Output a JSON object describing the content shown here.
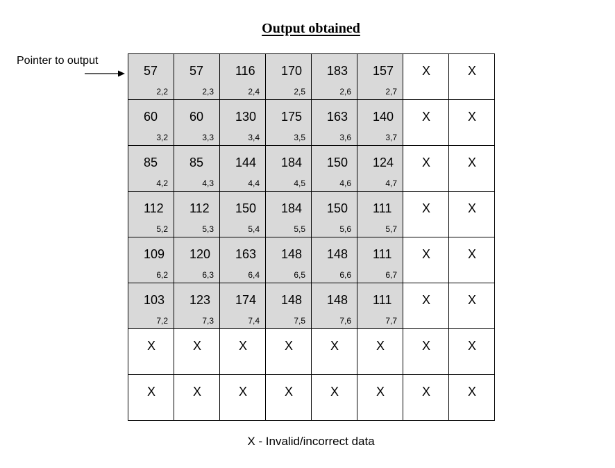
{
  "title": "Output obtained",
  "pointer_label": "Pointer to output",
  "legend": "X - Invalid/incorrect data",
  "invalid_symbol": "X",
  "colors": {
    "valid_cell": "#d9d9d9",
    "invalid_cell": "#ffffff",
    "border": "#000000"
  },
  "grid": {
    "rows": 8,
    "cols": 8,
    "cells": [
      [
        {
          "v": "57",
          "i": "2,2"
        },
        {
          "v": "57",
          "i": "2,3"
        },
        {
          "v": "116",
          "i": "2,4"
        },
        {
          "v": "170",
          "i": "2,5"
        },
        {
          "v": "183",
          "i": "2,6"
        },
        {
          "v": "157",
          "i": "2,7"
        },
        {
          "v": "X"
        },
        {
          "v": "X"
        }
      ],
      [
        {
          "v": "60",
          "i": "3,2"
        },
        {
          "v": "60",
          "i": "3,3"
        },
        {
          "v": "130",
          "i": "3,4"
        },
        {
          "v": "175",
          "i": "3,5"
        },
        {
          "v": "163",
          "i": "3,6"
        },
        {
          "v": "140",
          "i": "3,7"
        },
        {
          "v": "X"
        },
        {
          "v": "X"
        }
      ],
      [
        {
          "v": "85",
          "i": "4,2"
        },
        {
          "v": "85",
          "i": "4,3"
        },
        {
          "v": "144",
          "i": "4,4"
        },
        {
          "v": "184",
          "i": "4,5"
        },
        {
          "v": "150",
          "i": "4,6"
        },
        {
          "v": "124",
          "i": "4,7"
        },
        {
          "v": "X"
        },
        {
          "v": "X"
        }
      ],
      [
        {
          "v": "112",
          "i": "5,2"
        },
        {
          "v": "112",
          "i": "5,3"
        },
        {
          "v": "150",
          "i": "5,4"
        },
        {
          "v": "184",
          "i": "5,5"
        },
        {
          "v": "150",
          "i": "5,6"
        },
        {
          "v": "111",
          "i": "5,7"
        },
        {
          "v": "X"
        },
        {
          "v": "X"
        }
      ],
      [
        {
          "v": "109",
          "i": "6,2"
        },
        {
          "v": "120",
          "i": "6,3"
        },
        {
          "v": "163",
          "i": "6,4"
        },
        {
          "v": "148",
          "i": "6,5"
        },
        {
          "v": "148",
          "i": "6,6"
        },
        {
          "v": "111",
          "i": "6,7"
        },
        {
          "v": "X"
        },
        {
          "v": "X"
        }
      ],
      [
        {
          "v": "103",
          "i": "7,2"
        },
        {
          "v": "123",
          "i": "7,3"
        },
        {
          "v": "174",
          "i": "7,4"
        },
        {
          "v": "148",
          "i": "7,5"
        },
        {
          "v": "148",
          "i": "7,6"
        },
        {
          "v": "111",
          "i": "7,7"
        },
        {
          "v": "X"
        },
        {
          "v": "X"
        }
      ],
      [
        {
          "v": "X"
        },
        {
          "v": "X"
        },
        {
          "v": "X"
        },
        {
          "v": "X"
        },
        {
          "v": "X"
        },
        {
          "v": "X"
        },
        {
          "v": "X"
        },
        {
          "v": "X"
        }
      ],
      [
        {
          "v": "X"
        },
        {
          "v": "X"
        },
        {
          "v": "X"
        },
        {
          "v": "X"
        },
        {
          "v": "X"
        },
        {
          "v": "X"
        },
        {
          "v": "X"
        },
        {
          "v": "X"
        }
      ]
    ]
  }
}
